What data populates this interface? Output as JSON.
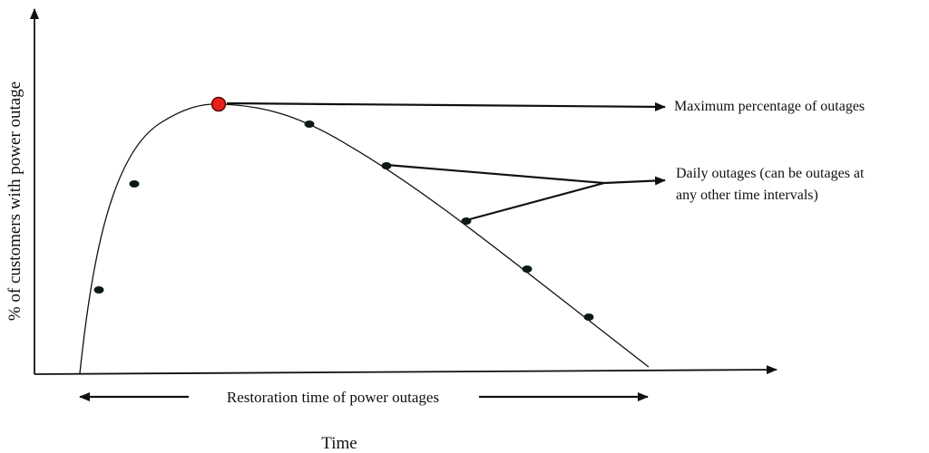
{
  "diagram": {
    "y_axis_label": "% of customers with power outage",
    "x_axis_label": "Time",
    "restoration_label": "Restoration time of power outages",
    "max_label": "Maximum percentage of outages",
    "daily_label_line1": "Daily outages (can be outages at",
    "daily_label_line2": "any other time intervals)",
    "colors": {
      "line": "#111111",
      "daily_point": "#0b1a14",
      "peak_point_fill": "#e8201a",
      "peak_point_stroke": "#5a0a06"
    }
  }
}
